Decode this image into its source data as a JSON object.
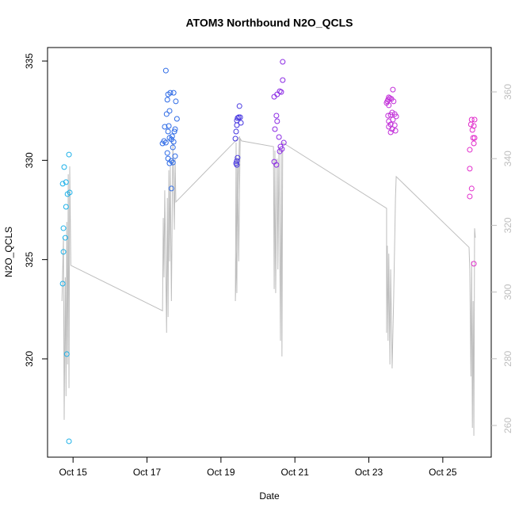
{
  "chart_data": {
    "type": "scatter",
    "title": "ATOM3 Northbound N2O_QCLS",
    "x_label": "Date",
    "y_label": "N2O_QCLS",
    "xlim": [
      14.31,
      26.31
    ],
    "ylim": [
      315.05,
      335.68
    ],
    "y2lim": [
      250.5,
      373.3
    ],
    "xticks": [
      {
        "value": 15,
        "label": "Oct 15"
      },
      {
        "value": 17,
        "label": "Oct 17"
      },
      {
        "value": 19,
        "label": "Oct 19"
      },
      {
        "value": 21,
        "label": "Oct 21"
      },
      {
        "value": 23,
        "label": "Oct 23"
      },
      {
        "value": 25,
        "label": "Oct 25"
      }
    ],
    "yticks": [
      320,
      325,
      330,
      335
    ],
    "y2ticks": [
      260,
      280,
      300,
      320,
      340,
      360
    ],
    "y2_color": "#bebebe",
    "series": [
      {
        "color": "#1ab0e8",
        "x": [
          14.76,
          14.72,
          14.81,
          14.85,
          14.91,
          14.81,
          14.74,
          14.79,
          14.74,
          14.72,
          14.89,
          14.83,
          14.89
        ],
        "values": [
          329.66,
          328.82,
          328.9,
          328.3,
          328.38,
          327.66,
          326.58,
          326.1,
          325.39,
          323.79,
          330.29,
          320.24,
          315.85
        ]
      },
      {
        "color": "#2e6be6",
        "x": [
          17.51,
          17.57,
          17.55,
          17.63,
          17.72,
          17.61,
          17.78,
          17.53,
          17.48,
          17.59,
          17.57,
          17.74,
          17.76,
          17.68,
          17.81,
          17.61,
          17.46,
          17.51,
          17.42,
          17.66,
          17.72,
          17.7,
          17.55,
          17.57,
          17.61,
          17.7,
          17.66,
          17.76,
          17.66
        ],
        "values": [
          334.52,
          333.32,
          333.05,
          333.4,
          333.4,
          332.49,
          332.97,
          332.33,
          331.69,
          331.73,
          331.45,
          331.45,
          331.57,
          331.21,
          332.09,
          331.13,
          330.97,
          330.89,
          330.85,
          331.05,
          330.93,
          330.65,
          330.37,
          330.09,
          329.85,
          329.89,
          329.97,
          330.21,
          328.58
        ]
      },
      {
        "color": "#4636e0",
        "x": [
          19.5,
          19.48,
          19.52,
          19.45,
          19.43,
          19.54,
          19.43,
          19.41,
          19.39,
          19.45,
          19.43,
          19.41,
          19.43
        ],
        "values": [
          332.73,
          332.17,
          332.17,
          332.13,
          332.01,
          331.89,
          331.77,
          331.45,
          331.09,
          330.13,
          329.97,
          329.85,
          329.77
        ]
      },
      {
        "color": "#8c2be4",
        "x": [
          20.67,
          20.67,
          20.59,
          20.63,
          20.52,
          20.44,
          20.5,
          20.52,
          20.46,
          20.57,
          20.7,
          20.61,
          20.65,
          20.59,
          20.44,
          20.5
        ],
        "values": [
          334.96,
          334.04,
          333.48,
          333.44,
          333.32,
          333.2,
          332.25,
          331.97,
          331.57,
          331.17,
          330.89,
          330.69,
          330.57,
          330.45,
          329.93,
          329.77
        ]
      },
      {
        "color": "#c22fd9",
        "x": [
          23.65,
          23.54,
          23.52,
          23.57,
          23.5,
          23.61,
          23.48,
          23.67,
          23.54,
          23.63,
          23.59,
          23.52,
          23.7,
          23.74,
          23.54,
          23.65,
          23.59,
          23.7,
          23.54,
          23.63,
          23.59,
          23.72
        ],
        "values": [
          333.56,
          333.17,
          333.05,
          333.13,
          332.97,
          333.09,
          332.89,
          332.97,
          332.77,
          332.41,
          332.29,
          332.25,
          332.33,
          332.21,
          331.97,
          332.05,
          331.81,
          331.77,
          331.69,
          331.57,
          331.41,
          331.49
        ]
      },
      {
        "color": "#e12bcb",
        "x": [
          25.78,
          25.86,
          25.76,
          25.84,
          25.8,
          25.82,
          25.86,
          25.84,
          25.73,
          25.73,
          25.78,
          25.73,
          25.84
        ],
        "values": [
          332.05,
          332.05,
          331.81,
          331.73,
          331.53,
          331.13,
          331.13,
          330.85,
          330.53,
          329.58,
          328.58,
          328.18,
          324.79
        ]
      },
      {
        "type": "line",
        "axis": "y2",
        "color": "#bebebe",
        "x": [
          14.7,
          14.74,
          14.76,
          14.79,
          14.81,
          14.83,
          14.85,
          14.87,
          14.89,
          14.91,
          14.94,
          17.42,
          17.44,
          17.46,
          17.48,
          17.53,
          17.55,
          17.57,
          17.59,
          17.61,
          17.63,
          17.66,
          17.7,
          17.74,
          17.76,
          17.78,
          19.5,
          19.39,
          19.41,
          19.43,
          19.45,
          19.48,
          19.52,
          19.56,
          20.42,
          20.44,
          20.46,
          20.48,
          20.52,
          20.54,
          20.57,
          20.61,
          20.63,
          20.65,
          20.67,
          23.48,
          23.48,
          23.5,
          23.52,
          23.54,
          23.57,
          23.59,
          23.63,
          23.67,
          23.72,
          23.74,
          25.71,
          25.73,
          25.76,
          25.78,
          25.8,
          25.82,
          25.84,
          25.86,
          25.88
        ],
        "values": [
          297.3,
          316.3,
          261.7,
          304.4,
          268.8,
          321.0,
          278.3,
          335.3,
          271.2,
          337.7,
          308.0,
          294.4,
          322.2,
          304.4,
          330.5,
          287.8,
          328.2,
          292.5,
          336.5,
          309.2,
          337.7,
          297.3,
          344.8,
          318.7,
          340.0,
          327.0,
          346.5,
          297.3,
          344.8,
          299.7,
          340.0,
          309.2,
          346.0,
          345.3,
          343.6,
          300.9,
          342.4,
          299.7,
          340.0,
          306.8,
          343.6,
          285.4,
          342.4,
          280.7,
          344.8,
          325.1,
          287.8,
          313.9,
          285.4,
          311.5,
          278.3,
          306.8,
          277.1,
          297.3,
          328.2,
          334.6,
          313.4,
          306.8,
          274.7,
          309.2,
          259.3,
          297.3,
          256.9,
          319.1,
          316.3
        ]
      }
    ]
  }
}
